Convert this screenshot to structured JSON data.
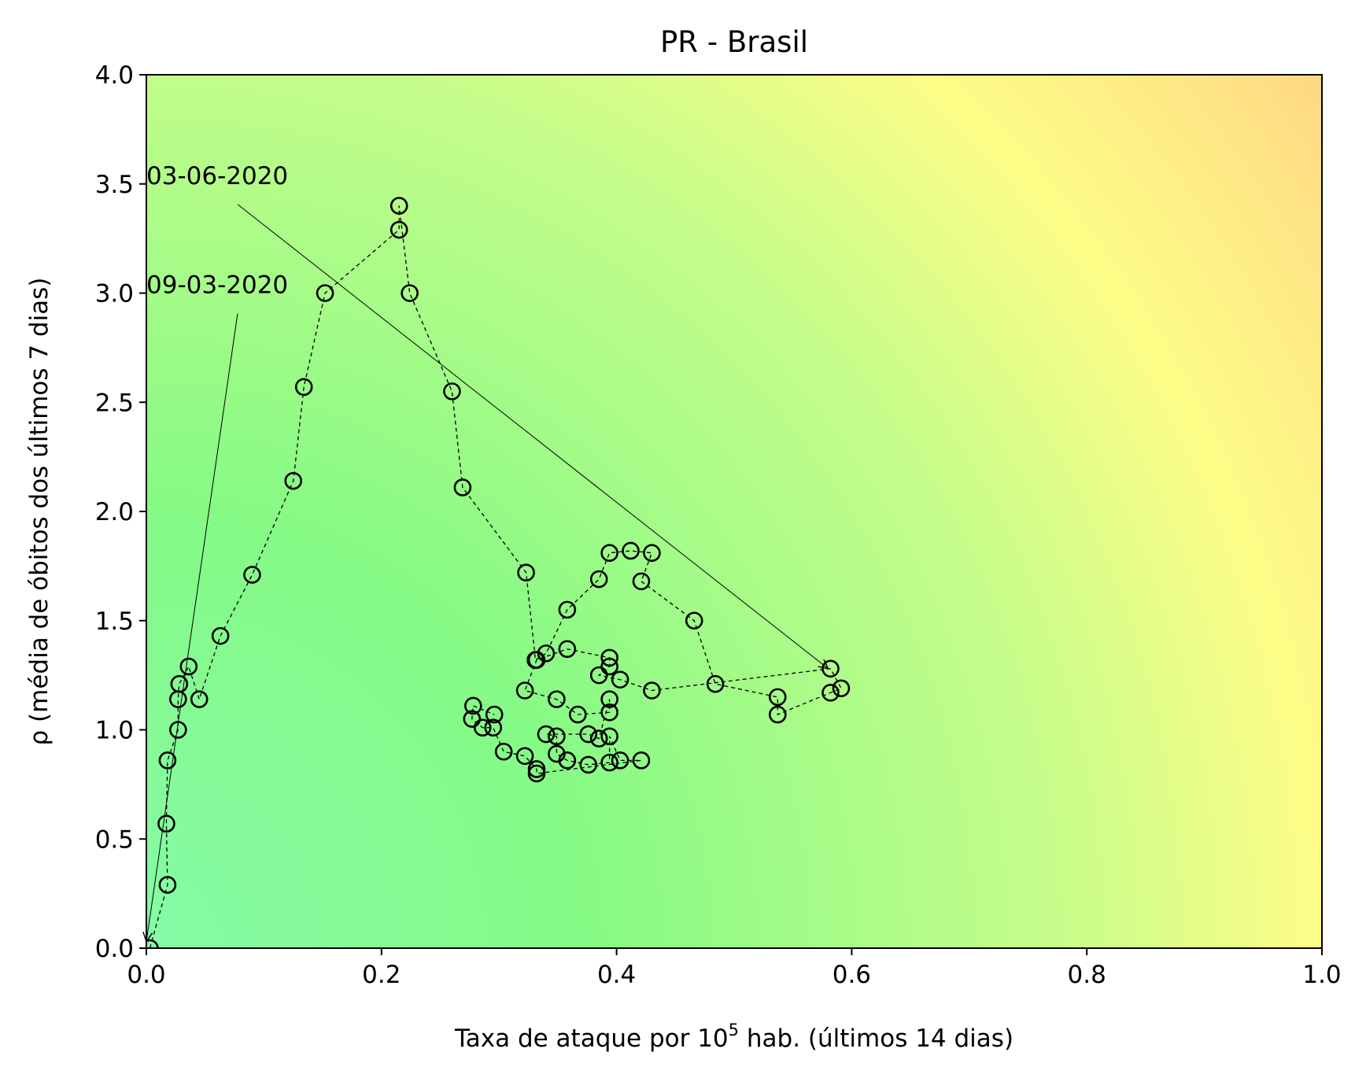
{
  "chart_data": {
    "type": "line",
    "title": "PR - Brasil",
    "xlabel_prefix": "Taxa de ataque por 10",
    "xlabel_exp": "5",
    "xlabel_suffix": " hab. (últimos 14 dias)",
    "ylabel": "ρ (média de óbitos dos últimos 7 dias)",
    "xlim": [
      0.0,
      1.0
    ],
    "ylim": [
      0.0,
      4.0
    ],
    "xticks": [
      "0.0",
      "0.2",
      "0.4",
      "0.6",
      "0.8",
      "1.0"
    ],
    "yticks": [
      "0.0",
      "0.5",
      "1.0",
      "1.5",
      "2.0",
      "2.5",
      "3.0",
      "3.5",
      "4.0"
    ],
    "grid": false,
    "background": "green-yellow-orange gradient increasing with x and y",
    "colors": {
      "low": "#85fba7",
      "mid": "#85fa85",
      "high": "#fdfd87",
      "top": "#fed883",
      "marker": "#000000"
    },
    "series": [
      {
        "marker": "open-circle",
        "line": "dashed",
        "x": [
          0.003,
          0.018,
          0.017,
          0.018,
          0.027,
          0.027,
          0.028,
          0.036,
          0.045,
          0.063,
          0.09,
          0.125,
          0.134,
          0.152,
          0.215,
          0.215,
          0.224,
          0.26,
          0.269,
          0.323,
          0.331,
          0.34,
          0.358,
          0.385,
          0.394,
          0.412,
          0.43,
          0.421,
          0.466,
          0.484,
          0.537,
          0.537,
          0.582,
          0.591,
          0.582,
          0.43,
          0.403,
          0.385,
          0.394,
          0.394,
          0.358,
          0.332,
          0.322,
          0.349,
          0.367,
          0.394,
          0.394,
          0.385,
          0.376,
          0.34,
          0.349,
          0.349,
          0.358,
          0.376,
          0.394,
          0.394,
          0.403,
          0.421,
          0.332,
          0.332,
          0.322,
          0.304,
          0.295,
          0.286,
          0.277,
          0.278,
          0.296
        ],
        "y": [
          0.0,
          0.29,
          0.57,
          0.86,
          1.0,
          1.14,
          1.21,
          1.29,
          1.14,
          1.43,
          1.71,
          2.14,
          2.57,
          3.0,
          3.29,
          3.4,
          3.0,
          2.55,
          2.11,
          1.72,
          1.32,
          1.35,
          1.55,
          1.69,
          1.81,
          1.82,
          1.81,
          1.68,
          1.5,
          1.21,
          1.15,
          1.07,
          1.17,
          1.19,
          1.28,
          1.18,
          1.23,
          1.25,
          1.29,
          1.33,
          1.37,
          1.32,
          1.18,
          1.14,
          1.07,
          1.08,
          1.14,
          0.96,
          0.98,
          0.98,
          0.97,
          0.89,
          0.86,
          0.84,
          0.85,
          0.97,
          0.86,
          0.86,
          0.8,
          0.82,
          0.88,
          0.9,
          1.01,
          1.01,
          1.05,
          1.11,
          1.07
        ]
      }
    ],
    "annotations": [
      {
        "text": "03-06-2020",
        "text_at": [
          0.0,
          3.5
        ],
        "arrow_to": [
          0.58,
          1.28
        ]
      },
      {
        "text": "09-03-2020",
        "text_at": [
          0.0,
          3.0
        ],
        "arrow_to": [
          0.0,
          0.03
        ]
      }
    ]
  }
}
